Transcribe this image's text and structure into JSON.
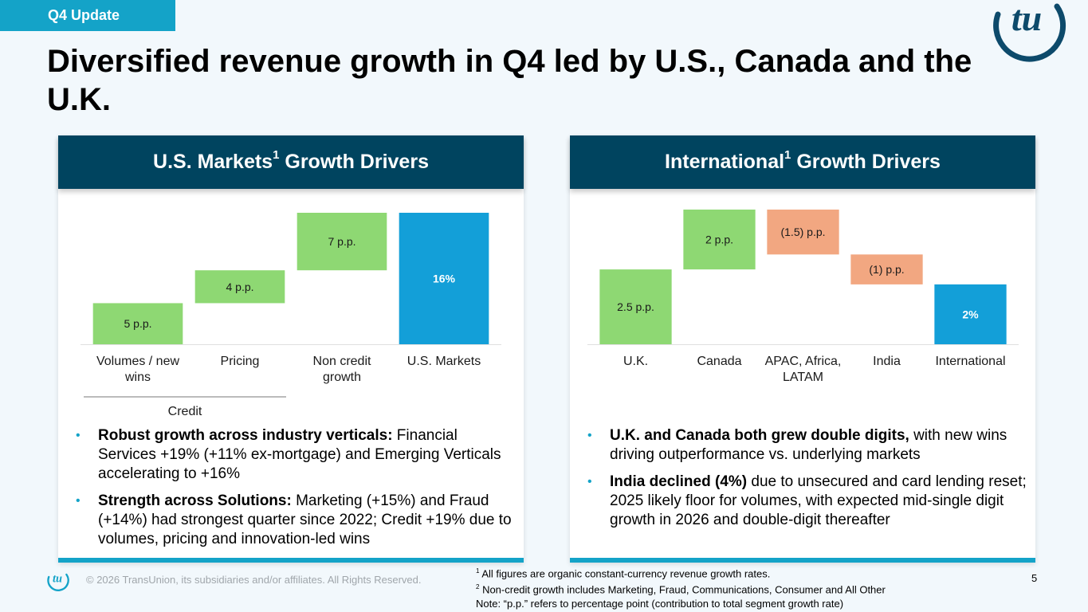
{
  "tag": "Q4 Update",
  "title": "Diversified revenue growth in Q4 led by U.S., Canada and the U.K.",
  "colors": {
    "positive": "#8ed873",
    "negative": "#f2a781",
    "total": "#139fd8",
    "header": "#00445f",
    "accent": "#14a3c8"
  },
  "left_panel": {
    "header_main": "U.S. Markets",
    "header_sup": "1",
    "header_rest": " Growth Drivers",
    "group_label": "Credit",
    "bullets": [
      {
        "bold": "Robust growth across industry verticals:",
        "text": " Financial Services +19% (+11% ex-mortgage) and Emerging Verticals accelerating to +16%"
      },
      {
        "bold": "Strength across Solutions:",
        "text": " Marketing (+15%) and Fraud (+14%) had strongest quarter since 2022; Credit +19% due to volumes, pricing and innovation-led wins"
      }
    ]
  },
  "right_panel": {
    "header_main": "International",
    "header_sup": "1",
    "header_rest": " Growth Drivers",
    "bullets": [
      {
        "bold": "U.K. and Canada both grew double digits,",
        "text": " with new wins driving outperformance vs. underlying markets"
      },
      {
        "bold": "India declined (4%)",
        "text": " due to unsecured and card lending reset; 2025 likely floor for volumes, with expected mid-single digit growth in 2026 and double-digit thereafter"
      }
    ]
  },
  "chart_data": [
    {
      "type": "bar",
      "subtype": "waterfall",
      "title": "U.S. Markets Growth Drivers",
      "categories": [
        "Volumes / new wins",
        "Pricing",
        "Non credit growth",
        "U.S. Markets"
      ],
      "values": [
        5,
        4,
        7,
        16
      ],
      "kinds": [
        "delta",
        "delta",
        "delta",
        "total"
      ],
      "labels": [
        "5 p.p.",
        "4 p.p.",
        "7 p.p.",
        "16%"
      ],
      "groups": [
        {
          "label": "Credit",
          "categories": [
            "Volumes / new wins",
            "Pricing"
          ]
        }
      ],
      "ylim": [
        0,
        16
      ]
    },
    {
      "type": "bar",
      "subtype": "waterfall",
      "title": "International Growth Drivers",
      "categories": [
        "U.K.",
        "Canada",
        "APAC, Africa, LATAM",
        "India",
        "International"
      ],
      "values": [
        2.5,
        2,
        -1.5,
        -1,
        2
      ],
      "kinds": [
        "delta",
        "delta",
        "delta",
        "delta",
        "total"
      ],
      "labels": [
        "2.5 p.p.",
        "2 p.p.",
        "(1.5) p.p.",
        "(1) p.p.",
        "2%"
      ],
      "ylim": [
        0,
        4.5
      ]
    }
  ],
  "footer": {
    "copyright": "© 2026 TransUnion, its subsidiaries and/or affiliates. All Rights Reserved.",
    "footnote1_num": "1",
    "footnote1": " All figures are organic constant-currency revenue growth rates.",
    "footnote2_num": "2",
    "footnote2": " Non-credit growth includes Marketing, Fraud, Communications, Consumer and All Other",
    "note": "Note: “p.p.” refers to percentage point (contribution to total segment growth rate)",
    "page": "5"
  }
}
